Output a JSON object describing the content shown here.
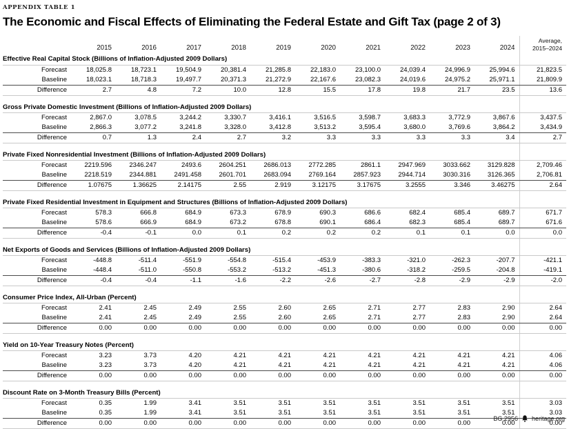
{
  "header": {
    "eyebrow": "APPENDIX TABLE 1",
    "title": "The Economic and Fiscal Effects of Eliminating the Federal Estate and Gift Tax (page 2 of 3)"
  },
  "table": {
    "year_headers": [
      "2015",
      "2016",
      "2017",
      "2018",
      "2019",
      "2020",
      "2021",
      "2022",
      "2023",
      "2024"
    ],
    "avg_header_line1": "Average,",
    "avg_header_line2": "2015–2024",
    "sections": [
      {
        "title": "Effective Real Capital Stock (Billions of Inflation-Adjusted 2009 Dollars)",
        "rows": [
          {
            "label": "Forecast",
            "values": [
              "18,025.8",
              "18,723.1",
              "19,504.9",
              "20,381.4",
              "21,285.8",
              "22,183.0",
              "23,100.0",
              "24,039.4",
              "24,996.9",
              "25,994.6"
            ],
            "average": "21,823.5"
          },
          {
            "label": "Baseline",
            "values": [
              "18,023.1",
              "18,718.3",
              "19,497.7",
              "20,371.3",
              "21,272.9",
              "22,167.6",
              "23,082.3",
              "24,019.6",
              "24,975.2",
              "25,971.1"
            ],
            "average": "21,809.9"
          },
          {
            "label": "Difference",
            "values": [
              "2.7",
              "4.8",
              "7.2",
              "10.0",
              "12.8",
              "15.5",
              "17.8",
              "19.8",
              "21.7",
              "23.5"
            ],
            "average": "13.6"
          }
        ]
      },
      {
        "title": "Gross Private Domestic Investment (Billions of Inflation-Adjusted 2009 Dollars)",
        "rows": [
          {
            "label": "Forecast",
            "values": [
              "2,867.0",
              "3,078.5",
              "3,244.2",
              "3,330.7",
              "3,416.1",
              "3,516.5",
              "3,598.7",
              "3,683.3",
              "3,772.9",
              "3,867.6"
            ],
            "average": "3,437.5"
          },
          {
            "label": "Baseline",
            "values": [
              "2,866.3",
              "3,077.2",
              "3,241.8",
              "3,328.0",
              "3,412.8",
              "3,513.2",
              "3,595.4",
              "3,680.0",
              "3,769.6",
              "3,864.2"
            ],
            "average": "3,434.9"
          },
          {
            "label": "Difference",
            "values": [
              "0.7",
              "1.3",
              "2.4",
              "2.7",
              "3.2",
              "3.3",
              "3.3",
              "3.3",
              "3.3",
              "3.4"
            ],
            "average": "2.7"
          }
        ]
      },
      {
        "title": "Private Fixed Nonresidential Investment (Billions of Inflation-Adjusted 2009 Dollars)",
        "rows": [
          {
            "label": "Forecast",
            "values": [
              "2219.596",
              "2346.247",
              "2493.6",
              "2604.251",
              "2686.013",
              "2772.285",
              "2861.1",
              "2947.969",
              "3033.662",
              "3129.828"
            ],
            "average": "2,709.46"
          },
          {
            "label": "Baseline",
            "values": [
              "2218.519",
              "2344.881",
              "2491.458",
              "2601.701",
              "2683.094",
              "2769.164",
              "2857.923",
              "2944.714",
              "3030.316",
              "3126.365"
            ],
            "average": "2,706.81"
          },
          {
            "label": "Difference",
            "values": [
              "1.07675",
              "1.36625",
              "2.14175",
              "2.55",
              "2.919",
              "3.12175",
              "3.17675",
              "3.2555",
              "3.346",
              "3.46275"
            ],
            "average": "2.64"
          }
        ]
      },
      {
        "title": "Private Fixed Residential Investment in Equipment and Structures (Billions of Inflation-Adjusted 2009 Dollars)",
        "rows": [
          {
            "label": "Forecast",
            "values": [
              "578.3",
              "666.8",
              "684.9",
              "673.3",
              "678.9",
              "690.3",
              "686.6",
              "682.4",
              "685.4",
              "689.7"
            ],
            "average": "671.7"
          },
          {
            "label": "Baseline",
            "values": [
              "578.6",
              "666.9",
              "684.9",
              "673.2",
              "678.8",
              "690.1",
              "686.4",
              "682.3",
              "685.4",
              "689.7"
            ],
            "average": "671.6"
          },
          {
            "label": "Difference",
            "values": [
              "-0.4",
              "-0.1",
              "0.0",
              "0.1",
              "0.2",
              "0.2",
              "0.2",
              "0.1",
              "0.1",
              "0.0"
            ],
            "average": "0.0"
          }
        ]
      },
      {
        "title": "Net Exports of Goods and Services (Billions of Inflation-Adjusted 2009 Dollars)",
        "rows": [
          {
            "label": "Forecast",
            "values": [
              "-448.8",
              "-511.4",
              "-551.9",
              "-554.8",
              "-515.4",
              "-453.9",
              "-383.3",
              "-321.0",
              "-262.3",
              "-207.7"
            ],
            "average": "-421.1"
          },
          {
            "label": "Baseline",
            "values": [
              "-448.4",
              "-511.0",
              "-550.8",
              "-553.2",
              "-513.2",
              "-451.3",
              "-380.6",
              "-318.2",
              "-259.5",
              "-204.8"
            ],
            "average": "-419.1"
          },
          {
            "label": "Difference",
            "values": [
              "-0.4",
              "-0.4",
              "-1.1",
              "-1.6",
              "-2.2",
              "-2.6",
              "-2.7",
              "-2.8",
              "-2.9",
              "-2.9"
            ],
            "average": "-2.0"
          }
        ]
      },
      {
        "title": "Consumer Price Index, All-Urban (Percent)",
        "rows": [
          {
            "label": "Forecast",
            "values": [
              "2.41",
              "2.45",
              "2.49",
              "2.55",
              "2.60",
              "2.65",
              "2.71",
              "2.77",
              "2.83",
              "2.90"
            ],
            "average": "2.64"
          },
          {
            "label": "Baseline",
            "values": [
              "2.41",
              "2.45",
              "2.49",
              "2.55",
              "2.60",
              "2.65",
              "2.71",
              "2.77",
              "2.83",
              "2.90"
            ],
            "average": "2.64"
          },
          {
            "label": "Difference",
            "values": [
              "0.00",
              "0.00",
              "0.00",
              "0.00",
              "0.00",
              "0.00",
              "0.00",
              "0.00",
              "0.00",
              "0.00"
            ],
            "average": "0.00"
          }
        ]
      },
      {
        "title": "Yield on 10-Year Treasury Notes (Percent)",
        "rows": [
          {
            "label": "Forecast",
            "values": [
              "3.23",
              "3.73",
              "4.20",
              "4.21",
              "4.21",
              "4.21",
              "4.21",
              "4.21",
              "4.21",
              "4.21"
            ],
            "average": "4.06"
          },
          {
            "label": "Baseline",
            "values": [
              "3.23",
              "3.73",
              "4.20",
              "4.21",
              "4.21",
              "4.21",
              "4.21",
              "4.21",
              "4.21",
              "4.21"
            ],
            "average": "4.06"
          },
          {
            "label": "Difference",
            "values": [
              "0.00",
              "0.00",
              "0.00",
              "0.00",
              "0.00",
              "0.00",
              "0.00",
              "0.00",
              "0.00",
              "0.00"
            ],
            "average": "0.00"
          }
        ]
      },
      {
        "title": "Discount Rate on 3-Month Treasury Bills (Percent)",
        "rows": [
          {
            "label": "Forecast",
            "values": [
              "0.35",
              "1.99",
              "3.41",
              "3.51",
              "3.51",
              "3.51",
              "3.51",
              "3.51",
              "3.51",
              "3.51"
            ],
            "average": "3.03"
          },
          {
            "label": "Baseline",
            "values": [
              "0.35",
              "1.99",
              "3.41",
              "3.51",
              "3.51",
              "3.51",
              "3.51",
              "3.51",
              "3.51",
              "3.51"
            ],
            "average": "3.03"
          },
          {
            "label": "Difference",
            "values": [
              "0.00",
              "0.00",
              "0.00",
              "0.00",
              "0.00",
              "0.00",
              "0.00",
              "0.00",
              "0.00",
              "0.00"
            ],
            "average": "0.00"
          }
        ]
      }
    ]
  },
  "footer": {
    "doc_id": "BG 2956",
    "site": "heritage.org",
    "logo_icon": "heritage-bell-icon"
  },
  "colors": {
    "text": "#000000",
    "rule_dark": "#4a4a4a",
    "rule_light": "#c9c9c9"
  }
}
